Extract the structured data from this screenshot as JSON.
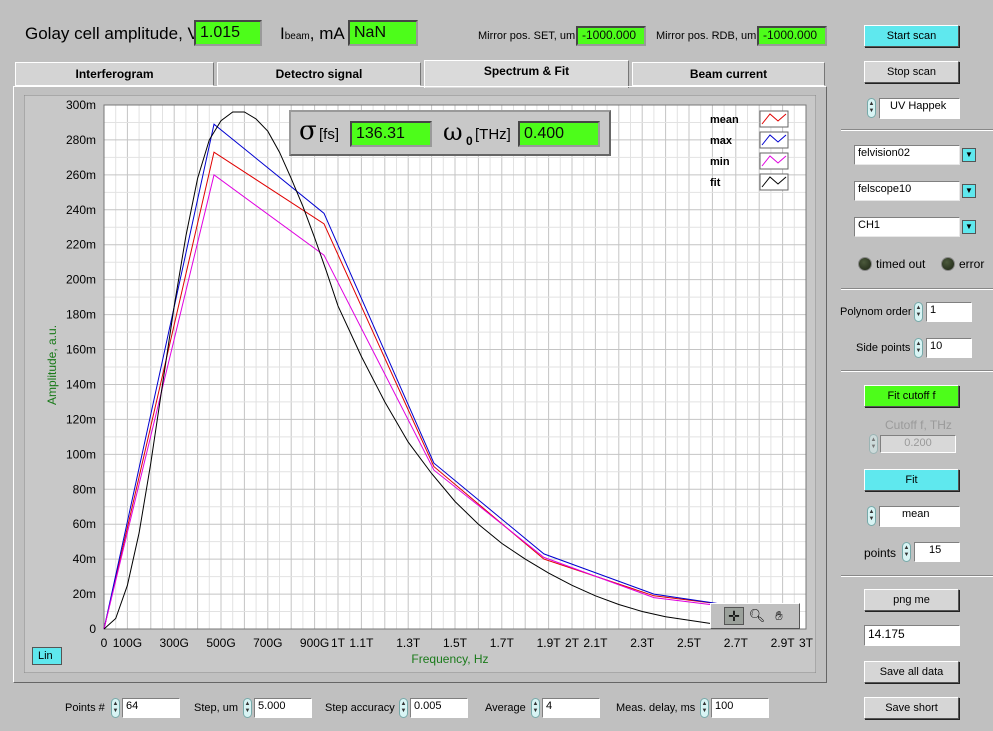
{
  "header": {
    "golay_label": "Golay cell amplitude, V",
    "golay_value": "1.015",
    "ibeam_label_main": "I",
    "ibeam_label_sub": "beam",
    "ibeam_label_unit": ", mA",
    "ibeam_value": "NaN",
    "mirror_set_label": "Mirror pos. SET, um",
    "mirror_set_value": "-1000.000",
    "mirror_rdb_label": "Mirror pos. RDB, um",
    "mirror_rdb_value": "-1000.000"
  },
  "tabs": [
    {
      "label": "Interferogram",
      "active": false
    },
    {
      "label": "Detectro signal",
      "active": false
    },
    {
      "label": "Spectrum & Fit",
      "active": true
    },
    {
      "label": "Beam current",
      "active": false
    }
  ],
  "fit_display": {
    "sigma_symbol": "σ",
    "sigma_unit": "[fs]",
    "sigma_value": "136.31",
    "omega_symbol": "ω",
    "omega_sub": "0",
    "omega_unit": "[THz]",
    "omega_value": "0.400"
  },
  "chart_data": {
    "type": "line",
    "xlabel": "Frequency, Hz",
    "ylabel": "Amplitude, a.u.",
    "xlim": [
      0,
      3.0
    ],
    "ylim": [
      0,
      0.3
    ],
    "x_unit": "THz",
    "x_ticks": [
      {
        "v": 0,
        "label": "0"
      },
      {
        "v": 0.1,
        "label": "100G"
      },
      {
        "v": 0.3,
        "label": "300G"
      },
      {
        "v": 0.5,
        "label": "500G"
      },
      {
        "v": 0.7,
        "label": "700G"
      },
      {
        "v": 0.9,
        "label": "900G"
      },
      {
        "v": 1.0,
        "label": "1T"
      },
      {
        "v": 1.1,
        "label": "1.1T"
      },
      {
        "v": 1.3,
        "label": "1.3T"
      },
      {
        "v": 1.5,
        "label": "1.5T"
      },
      {
        "v": 1.7,
        "label": "1.7T"
      },
      {
        "v": 1.9,
        "label": "1.9T"
      },
      {
        "v": 2.0,
        "label": "2T"
      },
      {
        "v": 2.1,
        "label": "2.1T"
      },
      {
        "v": 2.3,
        "label": "2.3T"
      },
      {
        "v": 2.5,
        "label": "2.5T"
      },
      {
        "v": 2.7,
        "label": "2.7T"
      },
      {
        "v": 2.9,
        "label": "2.9T"
      },
      {
        "v": 3.0,
        "label": "3T"
      }
    ],
    "y_ticks": [
      {
        "v": 0,
        "label": "0"
      },
      {
        "v": 0.02,
        "label": "20m"
      },
      {
        "v": 0.04,
        "label": "40m"
      },
      {
        "v": 0.06,
        "label": "60m"
      },
      {
        "v": 0.08,
        "label": "80m"
      },
      {
        "v": 0.1,
        "label": "100m"
      },
      {
        "v": 0.12,
        "label": "120m"
      },
      {
        "v": 0.14,
        "label": "140m"
      },
      {
        "v": 0.16,
        "label": "160m"
      },
      {
        "v": 0.18,
        "label": "180m"
      },
      {
        "v": 0.2,
        "label": "200m"
      },
      {
        "v": 0.22,
        "label": "220m"
      },
      {
        "v": 0.24,
        "label": "240m"
      },
      {
        "v": 0.26,
        "label": "260m"
      },
      {
        "v": 0.28,
        "label": "280m"
      },
      {
        "v": 0.3,
        "label": "300m"
      }
    ],
    "grid": true,
    "legend_position": "top-right",
    "series": [
      {
        "name": "mean",
        "color": "#e00000",
        "x": [
          0,
          0.47,
          0.94,
          1.41,
          1.88,
          2.35,
          2.65
        ],
        "y": [
          0,
          0.273,
          0.232,
          0.093,
          0.04,
          0.019,
          0.014
        ]
      },
      {
        "name": "max",
        "color": "#0000d0",
        "x": [
          0,
          0.47,
          0.94,
          1.41,
          1.88,
          2.35,
          2.65
        ],
        "y": [
          0,
          0.289,
          0.238,
          0.095,
          0.043,
          0.02,
          0.014
        ]
      },
      {
        "name": "min",
        "color": "#e000e0",
        "x": [
          0,
          0.47,
          0.94,
          1.41,
          1.88,
          2.35,
          2.65
        ],
        "y": [
          0,
          0.26,
          0.214,
          0.091,
          0.041,
          0.018,
          0.013
        ]
      },
      {
        "name": "fit",
        "color": "#000000",
        "x": [
          0,
          0.05,
          0.1,
          0.15,
          0.2,
          0.25,
          0.3,
          0.35,
          0.4,
          0.45,
          0.5,
          0.55,
          0.6,
          0.65,
          0.7,
          0.75,
          0.8,
          0.85,
          0.9,
          0.95,
          1.0,
          1.1,
          1.2,
          1.3,
          1.4,
          1.5,
          1.6,
          1.7,
          1.8,
          1.9,
          2.0,
          2.1,
          2.2,
          2.3,
          2.4,
          2.5,
          2.6,
          2.65
        ],
        "y": [
          0,
          0.006,
          0.025,
          0.055,
          0.095,
          0.14,
          0.185,
          0.225,
          0.258,
          0.28,
          0.291,
          0.296,
          0.296,
          0.292,
          0.285,
          0.273,
          0.258,
          0.242,
          0.224,
          0.205,
          0.185,
          0.156,
          0.13,
          0.107,
          0.089,
          0.073,
          0.06,
          0.049,
          0.04,
          0.032,
          0.025,
          0.019,
          0.014,
          0.01,
          0.007,
          0.005,
          0.003,
          0.002
        ]
      }
    ]
  },
  "graph_tools": {
    "scale_button": "Lin"
  },
  "bottom": {
    "points_label": "Points #",
    "points_value": "64",
    "step_label": "Step, um",
    "step_value": "5.000",
    "accuracy_label": "Step accuracy",
    "accuracy_value": "0.005",
    "average_label": "Average",
    "average_value": "4",
    "delay_label": "Meas. delay, ms",
    "delay_value": "100"
  },
  "right_panel": {
    "start_scan": "Start scan",
    "stop_scan": "Stop scan",
    "source_value": "UV Happek",
    "combo1": "felvision02",
    "combo2": "felscope10",
    "combo3": "CH1",
    "timed_out_label": "timed out",
    "error_label": "error",
    "polynom_label": "Polynom order",
    "polynom_value": "1",
    "side_points_label": "Side points",
    "side_points_value": "10",
    "fit_cutoff": "Fit cutoff f",
    "cutoff_label": "Cutoff f, THz",
    "cutoff_value": "0.200",
    "fit_button": "Fit",
    "mode_value": "mean",
    "points_label": "points",
    "points_value": "15",
    "png_button": "png me",
    "png_value": "14.175",
    "save_all": "Save all data",
    "save_short": "Save short"
  }
}
